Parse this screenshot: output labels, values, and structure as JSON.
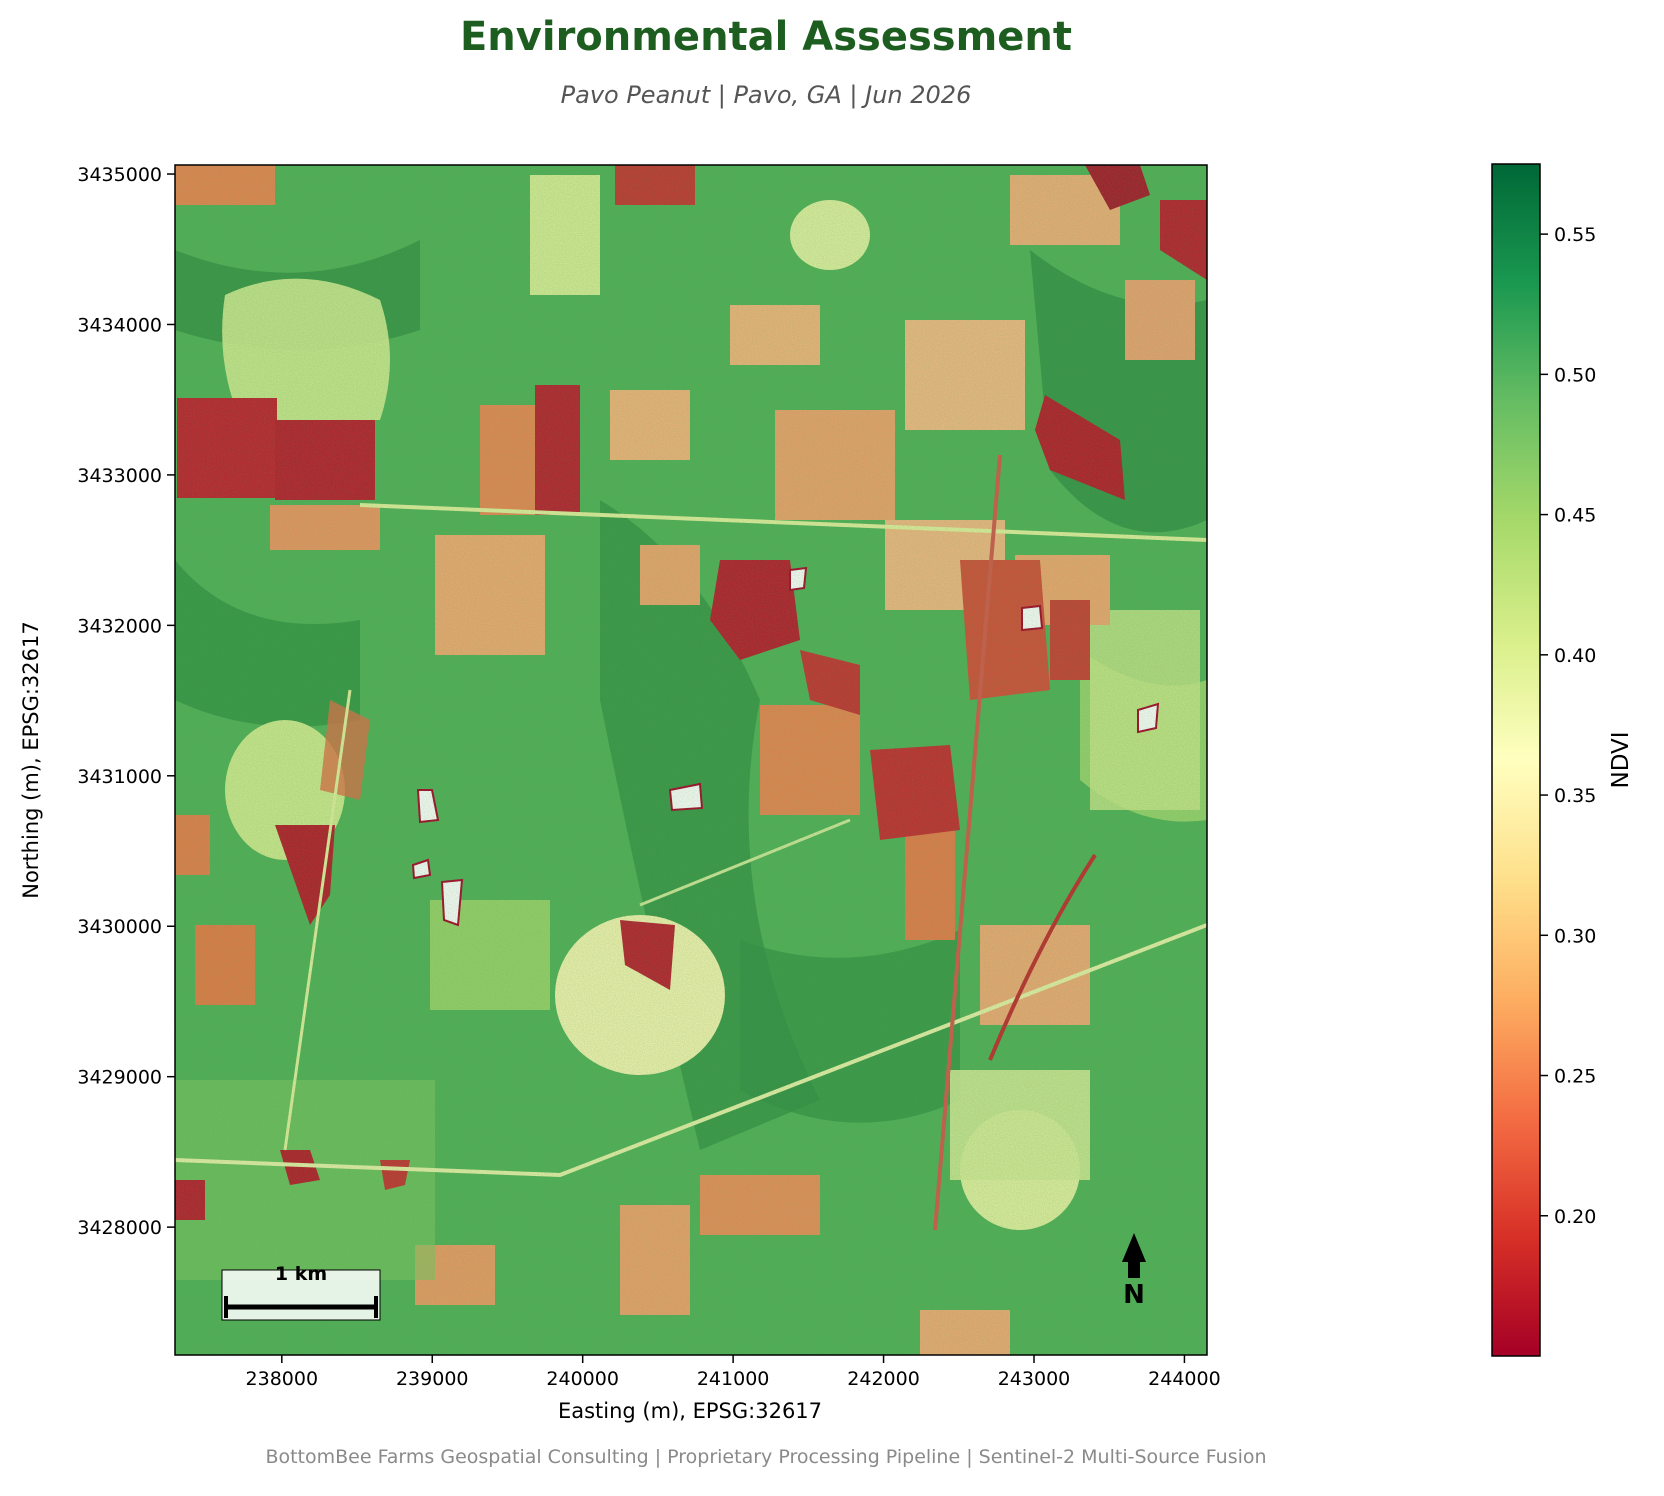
{
  "header": {
    "title": "Environmental Assessment",
    "subtitle": "Pavo Peanut  |  Pavo, GA  |  Jun 2026"
  },
  "map": {
    "x_axis_label": "Easting (m), EPSG:32617",
    "y_axis_label": "Northing (m), EPSG:32617",
    "x_ticks": [
      238000,
      239000,
      240000,
      241000,
      242000,
      243000,
      244000
    ],
    "y_ticks": [
      3428000,
      3429000,
      3430000,
      3431000,
      3432000,
      3433000,
      3434000,
      3435000
    ],
    "x_range": [
      237290,
      244150
    ],
    "y_range": [
      3427150,
      3435060
    ],
    "scale_bar_label": "1 km",
    "north_arrow_label": "N"
  },
  "colorbar": {
    "label": "NDVI",
    "ticks": [
      "0.20",
      "0.25",
      "0.30",
      "0.35",
      "0.40",
      "0.45",
      "0.50",
      "0.55"
    ],
    "range": [
      0.15,
      0.575
    ],
    "colors": [
      "#a50026",
      "#d73027",
      "#f46d43",
      "#fdae61",
      "#fee08b",
      "#ffffbf",
      "#d9ef8b",
      "#a6d96a",
      "#66bd63",
      "#1a9850",
      "#006837"
    ]
  },
  "footer": {
    "text": "BottomBee Farms Geospatial Consulting  |  Proprietary Processing Pipeline  |  Sentinel-2 Multi-Source Fusion"
  }
}
